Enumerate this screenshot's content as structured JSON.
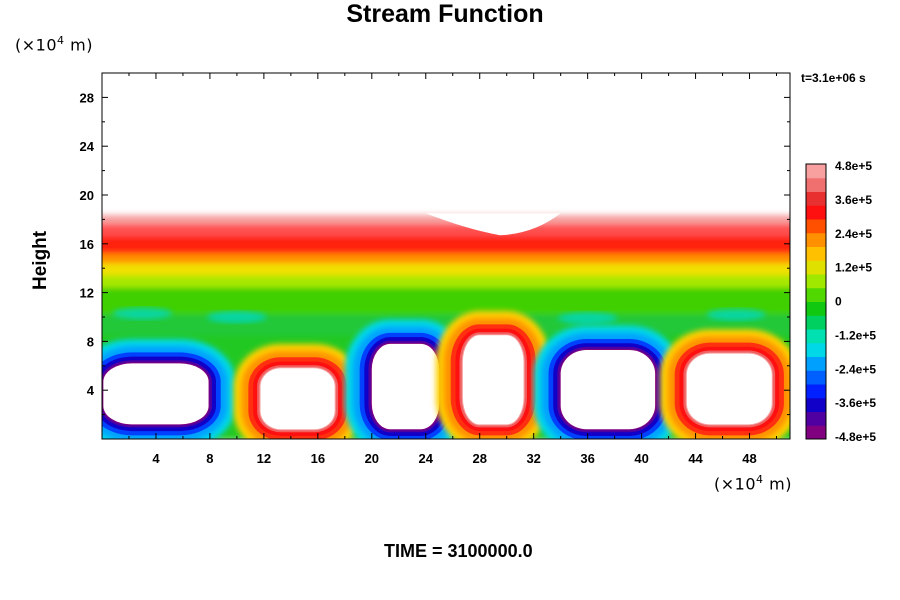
{
  "chart_data": {
    "type": "heatmap",
    "title": "Stream Function",
    "ylabel": "Height",
    "y_unit": {
      "prefix": "(×10",
      "exp": "4",
      "suffix": " m)"
    },
    "x_unit": {
      "prefix": "(×10",
      "exp": "4",
      "suffix": " m)"
    },
    "xlim": [
      0,
      51
    ],
    "ylim": [
      0,
      30
    ],
    "x_ticks": [
      4,
      8,
      12,
      16,
      20,
      24,
      28,
      32,
      36,
      40,
      44,
      48
    ],
    "y_ticks": [
      4,
      8,
      12,
      16,
      20,
      24,
      28
    ],
    "colorbar": {
      "range": [
        -480000,
        480000
      ],
      "ticks": [
        {
          "value": 480000,
          "label": "4.8e+5"
        },
        {
          "value": 360000,
          "label": "3.6e+5"
        },
        {
          "value": 240000,
          "label": "2.4e+5"
        },
        {
          "value": 120000,
          "label": "1.2e+5"
        },
        {
          "value": 0,
          "label": "0"
        },
        {
          "value": -120000,
          "label": "-1.2e+5"
        },
        {
          "value": -240000,
          "label": "-2.4e+5"
        },
        {
          "value": -360000,
          "label": "-3.6e+5"
        },
        {
          "value": -480000,
          "label": "-4.8e+5"
        }
      ],
      "colors": [
        "#800080",
        "#5000a0",
        "#1000c8",
        "#0020ff",
        "#0060ff",
        "#00a0ff",
        "#00d8e8",
        "#00e0b0",
        "#00d060",
        "#10c810",
        "#50d800",
        "#a0e800",
        "#e0e000",
        "#ffc000",
        "#ff9000",
        "#ff5000",
        "#ff1010",
        "#e83030",
        "#f07070",
        "#f8a0a0"
      ]
    },
    "top_layer": {
      "value": 420000,
      "y_top": 18,
      "y_bottom": 15
    },
    "cells": [
      {
        "x_center": 4.0,
        "x_left": 0.8,
        "x_right": 8.6,
        "y_bottom": 1.2,
        "y_top": 6.2,
        "sign": "negative"
      },
      {
        "x_center": 14.5,
        "x_left": 12.5,
        "x_right": 18.0,
        "y_bottom": 0.8,
        "y_top": 5.8,
        "sign": "positive"
      },
      {
        "x_center": 22.5,
        "x_left": 20.0,
        "x_right": 25.0,
        "y_bottom": 0.8,
        "y_top": 7.8,
        "sign": "negative"
      },
      {
        "x_center": 29.0,
        "x_left": 27.0,
        "x_right": 31.5,
        "y_bottom": 1.2,
        "y_top": 8.5,
        "sign": "positive"
      },
      {
        "x_center": 37.5,
        "x_left": 34.0,
        "x_right": 41.0,
        "y_bottom": 0.8,
        "y_top": 7.3,
        "sign": "negative"
      },
      {
        "x_center": 46.5,
        "x_left": 43.5,
        "x_right": 49.8,
        "y_bottom": 1.2,
        "y_top": 7.0,
        "sign": "positive"
      }
    ],
    "time_label": "t=3.1e+06 s"
  },
  "footer": {
    "time_text": "TIME = 3100000.0"
  }
}
